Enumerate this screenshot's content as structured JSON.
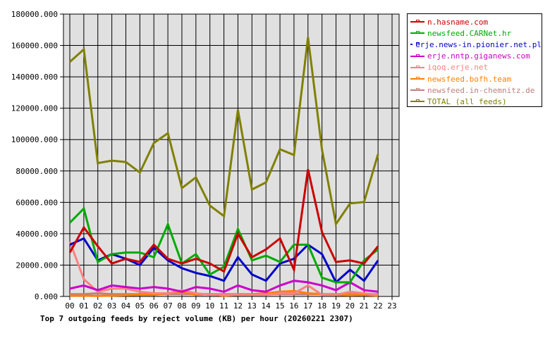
{
  "chart_data": {
    "type": "line",
    "title": "Top 7 outgoing feeds by reject volume (KB) per hour (20260221 2307)",
    "xlabel": "",
    "ylabel": "",
    "ylim": [
      0,
      180000
    ],
    "yticks": [
      "0.000",
      "20000.000",
      "40000.000",
      "60000.000",
      "80000.000",
      "100000.000",
      "120000.000",
      "140000.000",
      "160000.000",
      "180000.000"
    ],
    "categories": [
      "00",
      "01",
      "02",
      "03",
      "04",
      "05",
      "06",
      "07",
      "08",
      "09",
      "10",
      "11",
      "12",
      "13",
      "14",
      "15",
      "16",
      "17",
      "18",
      "19",
      "20",
      "21",
      "22",
      "23"
    ],
    "grid": true,
    "legend_position": "right",
    "series": [
      {
        "name": "n.hasname.com",
        "color": "#cc0000",
        "values": [
          28000,
          44000,
          32000,
          21000,
          24000,
          22000,
          33000,
          24000,
          21000,
          24000,
          21000,
          16000,
          40000,
          25000,
          30000,
          37000,
          17000,
          81000,
          41000,
          22000,
          23000,
          21000,
          32000
        ]
      },
      {
        "name": "newsfeed.CARNet.hr",
        "color": "#00aa00",
        "values": [
          47000,
          56000,
          22000,
          27000,
          28000,
          28000,
          25000,
          46000,
          21000,
          27000,
          14000,
          19000,
          43000,
          23000,
          26000,
          22000,
          33000,
          33000,
          12000,
          9000,
          9000,
          23000,
          30000
        ]
      },
      {
        "name": "erje.news-in.pionier.net.pl",
        "color": "#0000cc",
        "values": [
          33000,
          37000,
          23000,
          27000,
          24000,
          20000,
          31000,
          23000,
          18000,
          15000,
          13000,
          10000,
          25000,
          14000,
          10000,
          21000,
          24000,
          33000,
          27000,
          9000,
          17000,
          10000,
          23000
        ]
      },
      {
        "name": "erje.nntp.giganews.com",
        "color": "#cc00cc",
        "values": [
          5000,
          7000,
          4000,
          7000,
          6000,
          5000,
          6000,
          5000,
          3000,
          6000,
          5000,
          3000,
          7000,
          4000,
          3000,
          7000,
          10000,
          9000,
          7000,
          4000,
          9000,
          4000,
          3000
        ]
      },
      {
        "name": "iqoq.erje.net",
        "color": "#ff8080",
        "values": [
          35000,
          11000,
          3000,
          5000,
          5000,
          3000,
          2000,
          2000,
          4000,
          2000,
          1000,
          1000,
          1000,
          1000,
          1000,
          2000,
          2000,
          7000,
          1000,
          1000,
          3000,
          2000,
          1000
        ]
      },
      {
        "name": "newsfeed.bofh.team",
        "color": "#ff8000",
        "values": [
          500,
          500,
          300,
          500,
          800,
          1000,
          1000,
          2000,
          3000,
          1000,
          1500,
          500,
          1000,
          1500,
          2000,
          3000,
          3500,
          2000,
          1500,
          1000,
          800,
          1000,
          500
        ]
      },
      {
        "name": "newsfeed.in-chemnitz.de",
        "color": "#c08080",
        "values": [
          1500,
          1500,
          2000,
          1500,
          1500,
          1500,
          1500,
          1500,
          1500,
          1500,
          1500,
          1500,
          1500,
          1500,
          1500,
          1500,
          1500,
          1500,
          1500,
          1500,
          1500,
          1500,
          1500
        ]
      },
      {
        "name": "TOTAL (all feeds)",
        "color": "#808000",
        "values": [
          149500,
          157500,
          85000,
          86600,
          85700,
          79000,
          97800,
          104100,
          69100,
          75900,
          57900,
          51200,
          119000,
          68200,
          72700,
          93800,
          90200,
          165200,
          93400,
          46200,
          59300,
          60200,
          90700
        ]
      }
    ]
  },
  "legend": {
    "items": [
      {
        "label": "n.hasname.com",
        "color": "#cc0000"
      },
      {
        "label": "newsfeed.CARNet.hr",
        "color": "#00aa00"
      },
      {
        "label": "erje.news-in.pionier.net.pl",
        "color": "#0000cc"
      },
      {
        "label": "erje.nntp.giganews.com",
        "color": "#cc00cc"
      },
      {
        "label": "iqoq.erje.net",
        "color": "#ff8080"
      },
      {
        "label": "newsfeed.bofh.team",
        "color": "#ff8000"
      },
      {
        "label": "newsfeed.in-chemnitz.de",
        "color": "#c08080"
      },
      {
        "label": "TOTAL (all feeds)",
        "color": "#808000"
      }
    ]
  },
  "caption": "Top 7 outgoing feeds by reject volume (KB) per hour (20260221 2307)"
}
